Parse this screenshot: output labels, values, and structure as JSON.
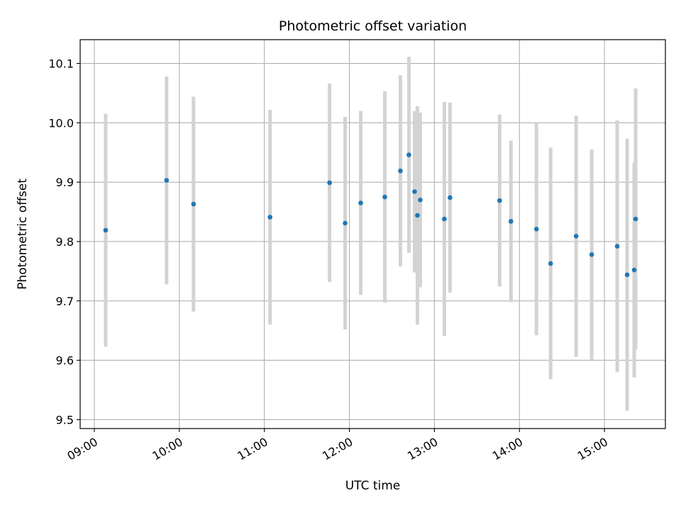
{
  "chart_data": {
    "type": "scatter",
    "title": "Photometric offset variation",
    "xlabel": "UTC time",
    "ylabel": "Photometric offset",
    "xlim": [
      "08:50",
      "15:43"
    ],
    "ylim": [
      9.485,
      10.14
    ],
    "x_ticks": [
      "09:00",
      "10:00",
      "11:00",
      "12:00",
      "13:00",
      "14:00",
      "15:00"
    ],
    "y_ticks": [
      9.5,
      9.6,
      9.7,
      9.8,
      9.9,
      10.0,
      10.1
    ],
    "grid": true,
    "point_color": "#1f77b4",
    "errorbar_color": "#d3d3d3",
    "series": [
      {
        "points": [
          {
            "x": "09:08",
            "y": 9.819,
            "err": 0.196
          },
          {
            "x": "09:51",
            "y": 9.903,
            "err": 0.175
          },
          {
            "x": "10:10",
            "y": 9.863,
            "err": 0.181
          },
          {
            "x": "11:04",
            "y": 9.841,
            "err": 0.181
          },
          {
            "x": "11:46",
            "y": 9.899,
            "err": 0.167
          },
          {
            "x": "11:57",
            "y": 9.831,
            "err": 0.179
          },
          {
            "x": "12:08",
            "y": 9.865,
            "err": 0.155
          },
          {
            "x": "12:25",
            "y": 9.875,
            "err": 0.178
          },
          {
            "x": "12:36",
            "y": 9.919,
            "err": 0.161
          },
          {
            "x": "12:42",
            "y": 9.946,
            "err": 0.165
          },
          {
            "x": "12:46",
            "y": 9.884,
            "err": 0.136
          },
          {
            "x": "12:48",
            "y": 9.844,
            "err": 0.184
          },
          {
            "x": "12:50",
            "y": 9.87,
            "err": 0.147
          },
          {
            "x": "13:07",
            "y": 9.838,
            "err": 0.197
          },
          {
            "x": "13:11",
            "y": 9.874,
            "err": 0.16
          },
          {
            "x": "13:46",
            "y": 9.869,
            "err": 0.145
          },
          {
            "x": "13:54",
            "y": 9.834,
            "err": 0.136
          },
          {
            "x": "14:12",
            "y": 9.821,
            "err": 0.179
          },
          {
            "x": "14:22",
            "y": 9.763,
            "err": 0.195
          },
          {
            "x": "14:40",
            "y": 9.809,
            "err": 0.203
          },
          {
            "x": "14:51",
            "y": 9.778,
            "err": 0.177
          },
          {
            "x": "15:09",
            "y": 9.792,
            "err": 0.212
          },
          {
            "x": "15:16",
            "y": 9.744,
            "err": 0.229
          },
          {
            "x": "15:21",
            "y": 9.752,
            "err": 0.181
          },
          {
            "x": "15:22",
            "y": 9.838,
            "err": 0.22
          }
        ]
      }
    ]
  }
}
